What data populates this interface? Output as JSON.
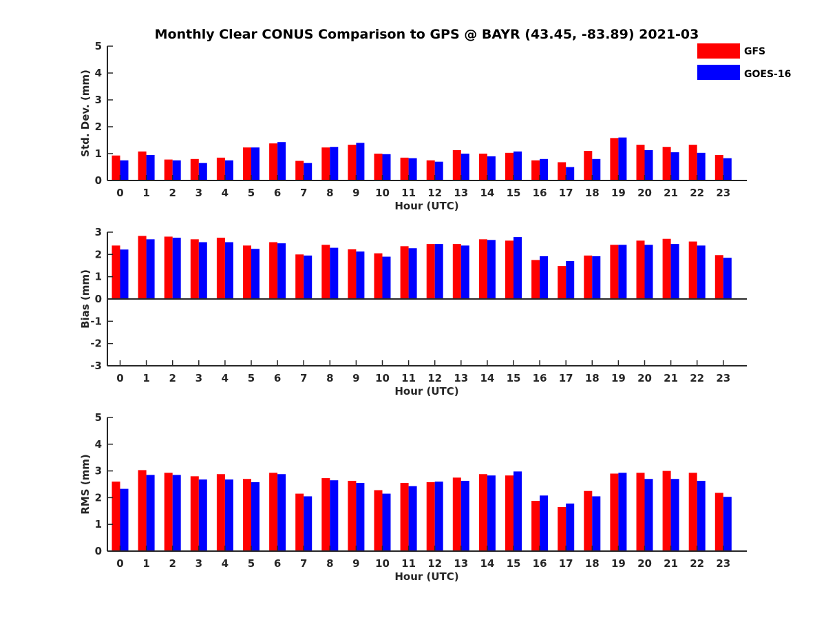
{
  "chart_data": [
    {
      "type": "bar",
      "title": "Monthly Clear CONUS Comparison to GPS @ BAYR (43.45, -83.89) 2021-03",
      "xlabel": "Hour (UTC)",
      "ylabel": "Std. Dev. (mm)",
      "ylim": [
        0,
        5
      ],
      "yticks": [
        0,
        1,
        2,
        3,
        4,
        5
      ],
      "categories": [
        "0",
        "1",
        "2",
        "3",
        "4",
        "5",
        "6",
        "7",
        "8",
        "9",
        "10",
        "11",
        "12",
        "13",
        "14",
        "15",
        "16",
        "17",
        "18",
        "19",
        "20",
        "21",
        "22",
        "23"
      ],
      "legend_position": "top-right",
      "series": [
        {
          "name": "GFS",
          "color": "#ff0000",
          "values": [
            0.93,
            1.08,
            0.78,
            0.8,
            0.85,
            1.23,
            1.38,
            0.73,
            1.23,
            1.33,
            1.0,
            0.85,
            0.75,
            1.13,
            1.0,
            1.03,
            0.75,
            0.68,
            1.1,
            1.58,
            1.33,
            1.25,
            1.33,
            0.95
          ]
        },
        {
          "name": "GOES-16",
          "color": "#0000ff",
          "values": [
            0.75,
            0.95,
            0.75,
            0.65,
            0.75,
            1.23,
            1.43,
            0.65,
            1.25,
            1.4,
            0.98,
            0.83,
            0.7,
            1.0,
            0.9,
            1.08,
            0.8,
            0.5,
            0.8,
            1.6,
            1.13,
            1.05,
            1.03,
            0.83
          ]
        }
      ]
    },
    {
      "type": "bar",
      "title": "",
      "xlabel": "Hour (UTC)",
      "ylabel": "Bias (mm)",
      "ylim": [
        -3,
        3
      ],
      "yticks": [
        -3,
        -2,
        -1,
        0,
        1,
        2,
        3
      ],
      "categories": [
        "0",
        "1",
        "2",
        "3",
        "4",
        "5",
        "6",
        "7",
        "8",
        "9",
        "10",
        "11",
        "12",
        "13",
        "14",
        "15",
        "16",
        "17",
        "18",
        "19",
        "20",
        "21",
        "22",
        "23"
      ],
      "series": [
        {
          "name": "GFS",
          "color": "#ff0000",
          "values": [
            2.4,
            2.83,
            2.8,
            2.68,
            2.75,
            2.4,
            2.55,
            2.0,
            2.43,
            2.23,
            2.05,
            2.37,
            2.47,
            2.47,
            2.68,
            2.62,
            1.75,
            1.48,
            1.95,
            2.43,
            2.62,
            2.7,
            2.58,
            1.97
          ]
        },
        {
          "name": "GOES-16",
          "color": "#0000ff",
          "values": [
            2.22,
            2.68,
            2.75,
            2.55,
            2.55,
            2.25,
            2.5,
            1.95,
            2.3,
            2.13,
            1.9,
            2.28,
            2.47,
            2.4,
            2.65,
            2.78,
            1.92,
            1.7,
            1.92,
            2.43,
            2.43,
            2.47,
            2.4,
            1.85
          ]
        }
      ]
    },
    {
      "type": "bar",
      "title": "",
      "xlabel": "Hour (UTC)",
      "ylabel": "RMS (mm)",
      "ylim": [
        0,
        5
      ],
      "yticks": [
        0,
        1,
        2,
        3,
        4,
        5
      ],
      "categories": [
        "0",
        "1",
        "2",
        "3",
        "4",
        "5",
        "6",
        "7",
        "8",
        "9",
        "10",
        "11",
        "12",
        "13",
        "14",
        "15",
        "16",
        "17",
        "18",
        "19",
        "20",
        "21",
        "22",
        "23"
      ],
      "series": [
        {
          "name": "GFS",
          "color": "#ff0000",
          "values": [
            2.6,
            3.03,
            2.93,
            2.8,
            2.88,
            2.7,
            2.93,
            2.15,
            2.73,
            2.63,
            2.28,
            2.55,
            2.58,
            2.75,
            2.88,
            2.83,
            1.88,
            1.65,
            2.25,
            2.9,
            2.93,
            3.0,
            2.93,
            2.18
          ]
        },
        {
          "name": "GOES-16",
          "color": "#0000ff",
          "values": [
            2.33,
            2.85,
            2.85,
            2.68,
            2.68,
            2.58,
            2.88,
            2.05,
            2.65,
            2.55,
            2.15,
            2.43,
            2.6,
            2.63,
            2.83,
            2.98,
            2.08,
            1.78,
            2.05,
            2.93,
            2.7,
            2.7,
            2.63,
            2.03
          ]
        }
      ]
    }
  ]
}
